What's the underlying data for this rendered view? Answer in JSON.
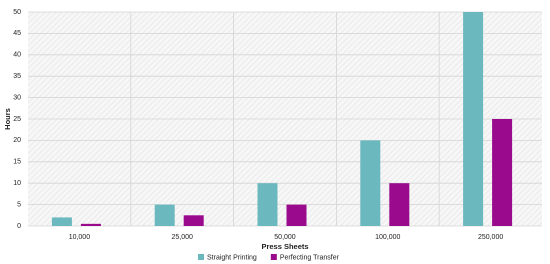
{
  "chart_data": {
    "type": "bar",
    "x_label": "Press Sheets",
    "y_label": "Hours",
    "categories": [
      "10,000",
      "25,000",
      "50,000",
      "100,000",
      "250,000"
    ],
    "series": [
      {
        "name": "Straight Printing",
        "color": "#6bb8bf",
        "values": [
          2,
          5,
          10,
          20,
          50
        ]
      },
      {
        "name": "Perfecting Transfer",
        "color": "#990a8c",
        "values": [
          0.5,
          2.5,
          5,
          10,
          25
        ]
      }
    ],
    "ylim": [
      0,
      50
    ],
    "yticks": [
      0,
      5,
      10,
      15,
      20,
      25,
      30,
      35,
      40,
      45,
      50
    ],
    "grid": true,
    "legend": "bottom"
  }
}
